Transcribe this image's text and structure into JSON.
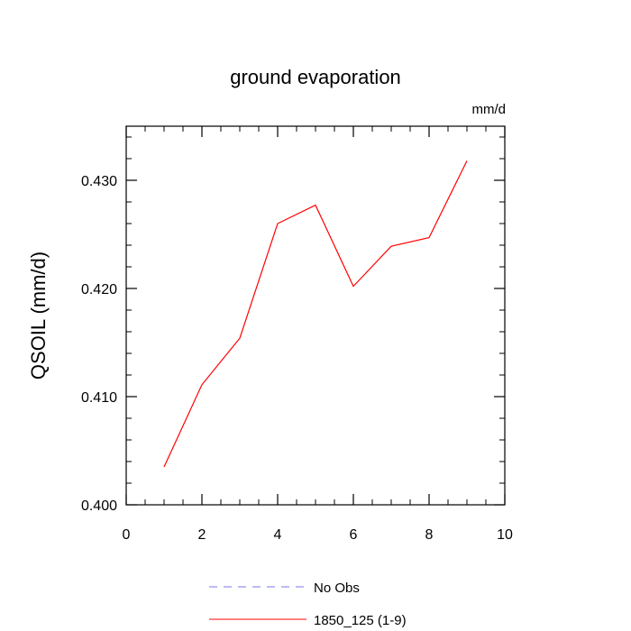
{
  "chart_data": {
    "type": "line",
    "title": "ground evaporation",
    "units_label": "mm/d",
    "xlabel": "",
    "ylabel": "QSOIL  (mm/d)",
    "xlim": [
      0,
      10
    ],
    "ylim": [
      0.4,
      0.435
    ],
    "x_ticks": [
      0,
      2,
      4,
      6,
      8,
      10
    ],
    "x_tick_labels": [
      "0",
      "2",
      "4",
      "6",
      "8",
      "10"
    ],
    "y_ticks": [
      0.4,
      0.41,
      0.42,
      0.43
    ],
    "y_tick_labels": [
      "0.400",
      "0.410",
      "0.420",
      "0.430"
    ],
    "grid": false,
    "legend_position": "bottom",
    "series": [
      {
        "name": "1850_125 (1-9)",
        "color": "#ff0000",
        "style": "solid",
        "x": [
          1,
          2,
          3,
          4,
          5,
          6,
          7,
          8,
          9
        ],
        "y": [
          0.4035,
          0.4111,
          0.4154,
          0.426,
          0.4277,
          0.4202,
          0.4239,
          0.4247,
          0.4318
        ]
      }
    ],
    "legend": [
      {
        "label": "No Obs",
        "color": "#7777ee",
        "style": "dashed"
      },
      {
        "label": "1850_125 (1-9)",
        "color": "#ff0000",
        "style": "solid"
      }
    ]
  }
}
